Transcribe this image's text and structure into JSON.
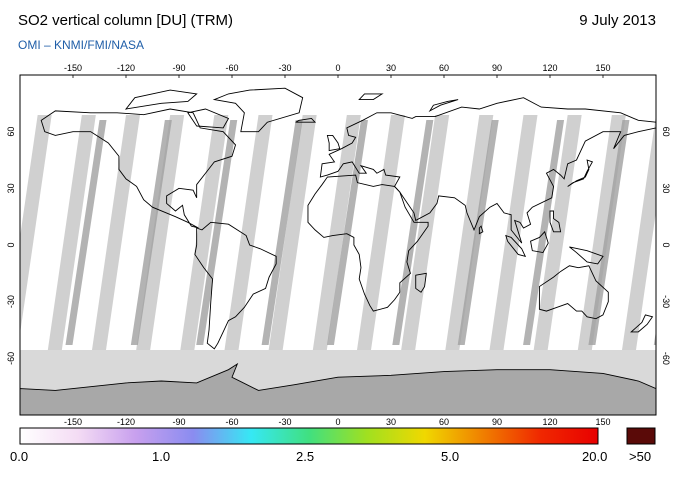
{
  "header": {
    "title": "SO2 vertical column [DU] (TRM)",
    "date": "9 July 2013",
    "credit": "OMI  –  KNMI/FMI/NASA"
  },
  "map": {
    "lon_ticks": [
      "-150",
      "-120",
      "-90",
      "-60",
      "-30",
      "0",
      "30",
      "60",
      "90",
      "120",
      "150"
    ],
    "lat_ticks": [
      "60",
      "30",
      "0",
      "-30",
      "-60"
    ],
    "ocean_color": "#ffffff",
    "swath_color": "#c8c8c8",
    "nodata_color": "#d9d9d9",
    "antarctica_color": "#a8a8a8"
  },
  "colorbar": {
    "labels": [
      "0.0",
      "1.0",
      "2.5",
      "5.0",
      "20.0"
    ],
    "overflow_label": ">50",
    "overflow_color": "#5a0a08",
    "stops": [
      "#ffffff",
      "#f4dcf4",
      "#c8a0ee",
      "#8a8cf0",
      "#36e8f4",
      "#40e080",
      "#a0e020",
      "#f0d800",
      "#f08000",
      "#f02800",
      "#e80000"
    ]
  }
}
